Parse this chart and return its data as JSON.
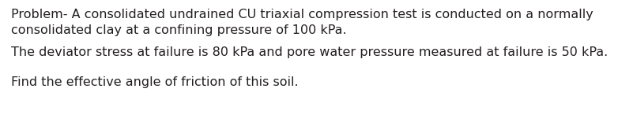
{
  "line1": "Problem- A consolidated undrained CU triaxial compression test is conducted on a normally",
  "line2": "consolidated clay at a confining pressure of 100 kPa.",
  "line3": "The deviator stress at failure is 80 kPa and pore water pressure measured at failure is 50 kPa.",
  "line4": "Find the effective angle of friction of this soil.",
  "background_color": "#ffffff",
  "text_color": "#231f20",
  "font_size": 11.5,
  "font_family": "DejaVu Sans"
}
